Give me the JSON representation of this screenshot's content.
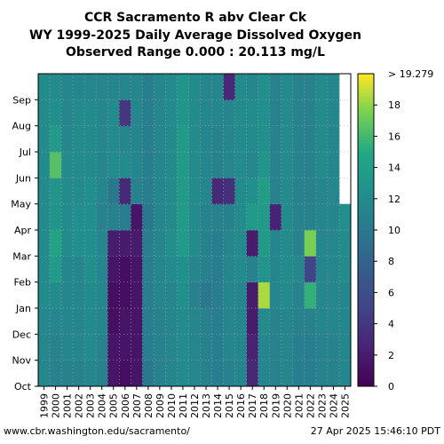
{
  "chart_data": {
    "type": "heatmap",
    "title_lines": [
      "CCR Sacramento R abv Clear Ck",
      "WY 1999-2025 Daily Average Dissolved Oxygen",
      "Observed Range 0.000 : 20.113 mg/L"
    ],
    "x_categories": [
      "1999",
      "2000",
      "2001",
      "2002",
      "2003",
      "2004",
      "2005",
      "2006",
      "2007",
      "2008",
      "2009",
      "2010",
      "2011",
      "2012",
      "2013",
      "2014",
      "2015",
      "2016",
      "2017",
      "2018",
      "2019",
      "2020",
      "2021",
      "2022",
      "2023",
      "2024",
      "2025"
    ],
    "y_months": [
      "Oct",
      "Nov",
      "Dec",
      "Jan",
      "Feb",
      "Mar",
      "Apr",
      "May",
      "Jun",
      "Jul",
      "Aug",
      "Sep"
    ],
    "colorbar": {
      "colormap": "viridis",
      "range": [
        0,
        20
      ],
      "ticks": [
        "0",
        "2",
        "4",
        "6",
        "8",
        "10",
        "12",
        "14",
        "16",
        "18"
      ],
      "extend_label": "> 19.279"
    },
    "grid": true,
    "xlabel": "",
    "ylabel": "",
    "values_note_level": 12,
    "monthly_values": [
      [
        11.5,
        11.5,
        11.5,
        12.0,
        12.0,
        12.0,
        12.0,
        12.0,
        12.0,
        12.0,
        12.0,
        12.0
      ],
      [
        11.0,
        11.0,
        11.5,
        12.0,
        13.5,
        14.5,
        13.0,
        13.0,
        16.5,
        13.5,
        12.5,
        12.0
      ],
      [
        11.0,
        11.5,
        11.5,
        11.5,
        11.5,
        12.0,
        12.0,
        12.0,
        12.0,
        11.5,
        11.5,
        11.5
      ],
      [
        11.0,
        11.5,
        11.5,
        11.5,
        11.5,
        12.5,
        12.5,
        12.0,
        12.0,
        12.0,
        12.0,
        11.5
      ],
      [
        11.5,
        12.0,
        12.0,
        12.0,
        12.5,
        12.5,
        12.5,
        12.5,
        12.0,
        12.0,
        12.0,
        11.5
      ],
      [
        11.0,
        11.0,
        11.5,
        11.5,
        11.5,
        11.5,
        11.0,
        11.5,
        11.5,
        11.5,
        11.5,
        11.5
      ],
      [
        1.5,
        1.5,
        1.0,
        1.0,
        1.5,
        2.0,
        11.0,
        10.0,
        12.0,
        12.0,
        12.0,
        11.5
      ],
      [
        1.0,
        1.5,
        1.5,
        1.0,
        1.0,
        2.0,
        10.5,
        3.0,
        12.0,
        11.5,
        4.0,
        11.5
      ],
      [
        1.5,
        1.5,
        1.5,
        1.5,
        1.5,
        2.0,
        1.5,
        11.0,
        11.5,
        11.5,
        11.5,
        11.5
      ],
      [
        10.0,
        10.5,
        10.5,
        10.5,
        10.5,
        10.5,
        10.0,
        10.5,
        10.5,
        10.5,
        10.5,
        10.5
      ],
      [
        11.0,
        11.0,
        11.0,
        11.5,
        11.5,
        11.5,
        11.5,
        11.5,
        11.5,
        11.5,
        11.5,
        11.5
      ],
      [
        11.5,
        11.5,
        11.5,
        11.5,
        12.0,
        12.5,
        12.0,
        12.0,
        12.0,
        12.0,
        12.0,
        12.0
      ],
      [
        12.0,
        12.0,
        12.0,
        12.5,
        12.5,
        13.5,
        13.5,
        13.5,
        13.5,
        13.5,
        13.0,
        13.0
      ],
      [
        11.5,
        11.5,
        11.5,
        11.0,
        11.5,
        12.0,
        12.0,
        12.0,
        12.0,
        12.0,
        12.0,
        12.0
      ],
      [
        11.0,
        11.0,
        11.0,
        10.0,
        11.0,
        11.0,
        11.0,
        11.5,
        11.5,
        11.5,
        11.5,
        11.5
      ],
      [
        10.5,
        10.5,
        10.5,
        10.5,
        10.5,
        10.5,
        11.0,
        3.0,
        11.0,
        11.0,
        11.5,
        11.5
      ],
      [
        11.0,
        11.5,
        11.5,
        11.5,
        11.5,
        11.5,
        11.0,
        3.5,
        11.5,
        11.5,
        11.5,
        3.0
      ],
      [
        11.5,
        11.5,
        11.5,
        11.5,
        12.0,
        12.0,
        12.0,
        12.0,
        12.0,
        12.0,
        12.0,
        12.0
      ],
      [
        3.0,
        2.5,
        2.0,
        2.0,
        11.0,
        2.0,
        13.5,
        12.5,
        11.5,
        12.0,
        12.0,
        11.5
      ],
      [
        11.5,
        11.5,
        12.0,
        18.5,
        13.0,
        13.5,
        13.5,
        14.0,
        13.0,
        12.5,
        12.5,
        12.5
      ],
      [
        11.0,
        11.0,
        11.0,
        11.5,
        11.5,
        11.5,
        2.5,
        11.0,
        11.0,
        11.0,
        11.0,
        11.0
      ],
      [
        11.5,
        11.5,
        11.5,
        12.0,
        12.0,
        12.0,
        12.0,
        12.0,
        12.0,
        12.0,
        12.0,
        12.0
      ],
      [
        10.5,
        10.5,
        11.0,
        11.0,
        11.5,
        11.0,
        11.0,
        11.0,
        11.0,
        11.0,
        11.0,
        11.0
      ],
      [
        10.5,
        10.5,
        11.0,
        15.5,
        5.0,
        17.5,
        11.0,
        11.0,
        11.0,
        11.0,
        11.0,
        11.0
      ],
      [
        11.0,
        11.0,
        11.5,
        11.5,
        11.5,
        11.5,
        11.5,
        11.5,
        12.0,
        12.0,
        12.0,
        12.0
      ],
      [
        11.0,
        11.0,
        11.5,
        11.5,
        11.5,
        11.5,
        11.5,
        11.5,
        11.5,
        11.5,
        11.5,
        11.5
      ],
      [
        11.5,
        11.5,
        11.5,
        11.5,
        12.0,
        12.0,
        12.5,
        null,
        null,
        null,
        null,
        null
      ]
    ]
  },
  "footer": {
    "source": "www.cbr.washington.edu/sacramento/",
    "timestamp": "27 Apr 2025 15:46:10 PDT"
  }
}
